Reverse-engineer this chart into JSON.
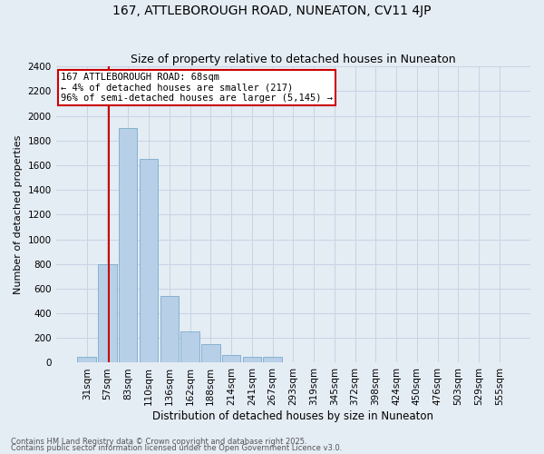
{
  "title": "167, ATTLEBOROUGH ROAD, NUNEATON, CV11 4JP",
  "subtitle": "Size of property relative to detached houses in Nuneaton",
  "xlabel": "Distribution of detached houses by size in Nuneaton",
  "ylabel": "Number of detached properties",
  "categories": [
    "31sqm",
    "57sqm",
    "83sqm",
    "110sqm",
    "136sqm",
    "162sqm",
    "188sqm",
    "214sqm",
    "241sqm",
    "267sqm",
    "293sqm",
    "319sqm",
    "345sqm",
    "372sqm",
    "398sqm",
    "424sqm",
    "450sqm",
    "476sqm",
    "503sqm",
    "529sqm",
    "555sqm"
  ],
  "values": [
    50,
    800,
    1900,
    1650,
    540,
    250,
    150,
    60,
    50,
    50,
    0,
    0,
    0,
    0,
    0,
    0,
    0,
    0,
    0,
    0,
    0
  ],
  "bar_color": "#b8cfe8",
  "bar_edge_color": "#7aaBcc",
  "annotation_box_text": "167 ATTLEBOROUGH ROAD: 68sqm\n← 4% of detached houses are smaller (217)\n96% of semi-detached houses are larger (5,145) →",
  "annotation_box_color": "white",
  "annotation_box_edge_color": "#cc0000",
  "vline_color": "#cc0000",
  "vline_position": 1.5,
  "ylim": [
    0,
    2400
  ],
  "yticks": [
    0,
    200,
    400,
    600,
    800,
    1000,
    1200,
    1400,
    1600,
    1800,
    2000,
    2200,
    2400
  ],
  "grid_color": "#c8d4e4",
  "background_color": "#e4ecf4",
  "footnote1": "Contains HM Land Registry data © Crown copyright and database right 2025.",
  "footnote2": "Contains public sector information licensed under the Open Government Licence v3.0.",
  "title_fontsize": 10,
  "subtitle_fontsize": 9,
  "ann_fontsize": 7.5,
  "xlabel_fontsize": 8.5,
  "ylabel_fontsize": 8,
  "tick_fontsize": 7.5,
  "footnote_fontsize": 6
}
